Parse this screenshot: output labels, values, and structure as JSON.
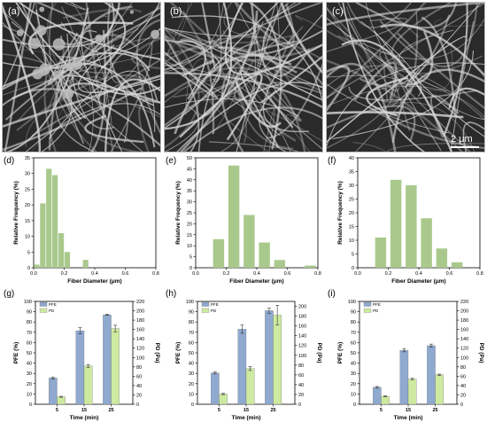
{
  "panels": {
    "a": "(a)",
    "b": "(b)",
    "c": "(c)",
    "d": "(d)",
    "e": "(e)",
    "f": "(f)",
    "g": "(g)",
    "h": "(h)",
    "i": "(i)"
  },
  "scale_bar_label": "2 μm",
  "colors": {
    "hist_bar": "#a9c98c",
    "pfe_bar": "#8fa9cf",
    "pd_bar": "#cdeaa0",
    "sem_bg": "#2a2a2a",
    "sem_fiber": "#d9d9d9"
  },
  "chart_data": [
    {
      "panel": "d",
      "type": "bar",
      "xlabel": "Fiber Diameter (μm)",
      "ylabel": "Relative Frequency (%)",
      "xlim": [
        0.0,
        0.8
      ],
      "ylim": [
        0,
        35
      ],
      "xticks": [
        "0.0",
        "0.2",
        "0.4",
        "0.6",
        "0.8"
      ],
      "yticks": [
        "0",
        "5",
        "10",
        "15",
        "20",
        "25",
        "30",
        "35"
      ],
      "bin_width": 0.04,
      "x": [
        0.02,
        0.06,
        0.1,
        0.14,
        0.18,
        0.22,
        0.26,
        0.3,
        0.34,
        0.38,
        0.42,
        0.46,
        0.5,
        0.54,
        0.58,
        0.62,
        0.66,
        0.7,
        0.74,
        0.78
      ],
      "values": [
        1,
        20.5,
        31.5,
        29.5,
        11,
        5,
        0,
        0,
        2.5,
        0,
        0,
        0,
        0,
        0,
        0,
        0,
        0,
        0,
        0,
        0
      ]
    },
    {
      "panel": "e",
      "type": "bar",
      "xlabel": "Fiber Diameter (μm)",
      "ylabel": "Relative Frequency (%)",
      "xlim": [
        0.0,
        0.8
      ],
      "ylim": [
        0,
        50
      ],
      "xticks": [
        "0.0",
        "0.2",
        "0.4",
        "0.6",
        "0.8"
      ],
      "yticks": [
        "0",
        "5",
        "10",
        "15",
        "20",
        "25",
        "30",
        "35",
        "40",
        "45",
        "50"
      ],
      "bin_width": 0.08,
      "x": [
        0.15,
        0.25,
        0.35,
        0.45,
        0.55,
        0.65,
        0.75
      ],
      "values": [
        13,
        46.5,
        24,
        11.5,
        3.5,
        0,
        1
      ]
    },
    {
      "panel": "f",
      "type": "bar",
      "xlabel": "Fiber Diameter (μm)",
      "ylabel": "Relative Frequency (%)",
      "xlim": [
        0.0,
        0.8
      ],
      "ylim": [
        0,
        40
      ],
      "xticks": [
        "0.0",
        "0.2",
        "0.4",
        "0.6",
        "0.8"
      ],
      "yticks": [
        "0",
        "5",
        "10",
        "15",
        "20",
        "25",
        "30",
        "35",
        "40"
      ],
      "bin_width": 0.08,
      "x": [
        0.15,
        0.25,
        0.35,
        0.45,
        0.55,
        0.65
      ],
      "values": [
        11,
        32,
        30,
        18,
        7,
        2
      ]
    },
    {
      "panel": "g",
      "type": "bar",
      "xlabel": "Time (min)",
      "ylabel": "PFE (%)",
      "ylabel_right": "PD (Pa)",
      "categories": [
        "5",
        "15",
        "25"
      ],
      "ylim": [
        0,
        100
      ],
      "ylim_right": [
        0,
        220
      ],
      "yticks": [
        "0",
        "10",
        "20",
        "30",
        "40",
        "50",
        "60",
        "70",
        "80",
        "90",
        "100"
      ],
      "yticks_right": [
        "0",
        "20",
        "40",
        "60",
        "80",
        "100",
        "120",
        "140",
        "160",
        "180",
        "200",
        "220"
      ],
      "series": [
        {
          "name": "PFE",
          "axis": "left",
          "values": [
            25.5,
            71.5,
            87
          ],
          "errors": [
            1,
            3,
            0.5
          ]
        },
        {
          "name": "PD",
          "axis": "right",
          "values": [
            16,
            82,
            162
          ],
          "errors": [
            1,
            3,
            7
          ]
        }
      ]
    },
    {
      "panel": "h",
      "type": "bar",
      "xlabel": "Time (min)",
      "ylabel": "PFE (%)",
      "ylabel_right": "PD (Pa)",
      "categories": [
        "5",
        "15",
        "25"
      ],
      "ylim": [
        0,
        100
      ],
      "ylim_right": [
        0,
        210
      ],
      "yticks": [
        "0",
        "10",
        "20",
        "30",
        "40",
        "50",
        "60",
        "70",
        "80",
        "90",
        "100"
      ],
      "yticks_right": [
        "0",
        "20",
        "40",
        "60",
        "80",
        "100",
        "120",
        "140",
        "160",
        "180",
        "200"
      ],
      "series": [
        {
          "name": "PFE",
          "axis": "left",
          "values": [
            30.5,
            73,
            91
          ],
          "errors": [
            1,
            4,
            2.5
          ]
        },
        {
          "name": "PD",
          "axis": "right",
          "values": [
            21,
            73,
            182
          ],
          "errors": [
            1.5,
            4,
            20
          ]
        }
      ]
    },
    {
      "panel": "i",
      "type": "bar",
      "xlabel": "Time (min)",
      "ylabel": "PFE (%)",
      "ylabel_right": "PD (Pa)",
      "categories": [
        "5",
        "15",
        "25"
      ],
      "ylim": [
        0,
        100
      ],
      "ylim_right": [
        0,
        220
      ],
      "yticks": [
        "0",
        "10",
        "20",
        "30",
        "40",
        "50",
        "60",
        "70",
        "80",
        "90",
        "100"
      ],
      "yticks_right": [
        "0",
        "20",
        "40",
        "60",
        "80",
        "100",
        "120",
        "140",
        "160",
        "180",
        "200",
        "220"
      ],
      "series": [
        {
          "name": "PFE",
          "axis": "left",
          "values": [
            16.5,
            52.5,
            57
          ],
          "errors": [
            0.8,
            1.5,
            1.5
          ]
        },
        {
          "name": "PD",
          "axis": "right",
          "values": [
            17,
            54,
            63
          ],
          "errors": [
            1,
            1.5,
            1.5
          ]
        }
      ]
    }
  ]
}
